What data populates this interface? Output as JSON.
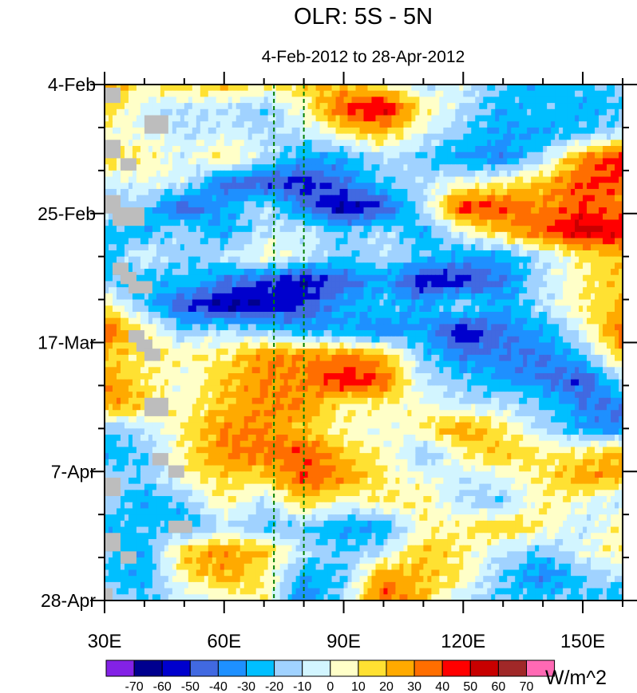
{
  "chart_data": {
    "type": "heatmap",
    "title": "OLR: 5S - 5N",
    "subtitle": "4-Feb-2012 to 28-Apr-2012",
    "xlabel": "",
    "ylabel": "",
    "x_ticks": [
      {
        "lon": 30,
        "label": "30E"
      },
      {
        "lon": 60,
        "label": "60E"
      },
      {
        "lon": 90,
        "label": "90E"
      },
      {
        "lon": 120,
        "label": "120E"
      },
      {
        "lon": 150,
        "label": "150E"
      }
    ],
    "y_ticks": [
      {
        "day": 0,
        "label": "4-Feb"
      },
      {
        "day": 21,
        "label": "25-Feb"
      },
      {
        "day": 42,
        "label": "17-Mar"
      },
      {
        "day": 63,
        "label": "7-Apr"
      },
      {
        "day": 84,
        "label": "28-Apr"
      }
    ],
    "xlim": [
      30,
      160
    ],
    "ylim_days": [
      0,
      84
    ],
    "lon": [
      30,
      40,
      50,
      60,
      70,
      80,
      90,
      100,
      110,
      120,
      130,
      140,
      150,
      160
    ],
    "days": [
      0,
      4,
      8,
      12,
      16,
      20,
      24,
      28,
      32,
      36,
      40,
      44,
      48,
      52,
      56,
      60,
      64,
      68,
      72,
      76,
      80,
      84
    ],
    "values": [
      [
        30,
        10,
        15,
        20,
        10,
        20,
        20,
        10,
        -10,
        -5,
        -20,
        -30,
        -20,
        -20
      ],
      [
        20,
        -5,
        -10,
        -10,
        -20,
        5,
        40,
        55,
        10,
        -10,
        -30,
        -20,
        -30,
        -20
      ],
      [
        0,
        0,
        -10,
        -5,
        -10,
        -10,
        10,
        20,
        -5,
        -20,
        -30,
        -30,
        -20,
        -10
      ],
      [
        20,
        10,
        -5,
        15,
        -10,
        -30,
        -30,
        -10,
        -20,
        -30,
        -40,
        -10,
        30,
        50
      ],
      [
        -10,
        0,
        -5,
        -45,
        -50,
        -55,
        -40,
        -20,
        -10,
        0,
        10,
        20,
        40,
        40
      ],
      [
        -10,
        -20,
        -50,
        -30,
        -10,
        -40,
        -65,
        -50,
        -10,
        45,
        40,
        30,
        40,
        30
      ],
      [
        -20,
        -30,
        -10,
        -30,
        -10,
        -5,
        -20,
        -10,
        -30,
        0,
        20,
        40,
        55,
        50
      ],
      [
        -30,
        0,
        -20,
        -10,
        5,
        -5,
        -20,
        -10,
        -20,
        -30,
        -30,
        -10,
        10,
        20
      ],
      [
        -20,
        -30,
        -20,
        -40,
        -50,
        -60,
        -45,
        -30,
        -60,
        -55,
        -40,
        -10,
        10,
        20
      ],
      [
        10,
        -20,
        -50,
        -65,
        -60,
        -50,
        -30,
        -20,
        -30,
        -10,
        -30,
        -10,
        10,
        20
      ],
      [
        40,
        10,
        -20,
        -10,
        -20,
        -30,
        -30,
        -40,
        -30,
        -60,
        -40,
        -30,
        0,
        40
      ],
      [
        20,
        10,
        10,
        10,
        30,
        30,
        30,
        20,
        -20,
        -40,
        -40,
        -40,
        -20,
        20
      ],
      [
        30,
        10,
        0,
        20,
        30,
        30,
        50,
        40,
        -10,
        -20,
        -30,
        -40,
        -50,
        -10
      ],
      [
        30,
        20,
        5,
        20,
        30,
        30,
        10,
        10,
        0,
        -10,
        -10,
        -20,
        -40,
        -40
      ],
      [
        -20,
        -10,
        10,
        30,
        30,
        20,
        5,
        0,
        10,
        30,
        10,
        -10,
        -30,
        -40
      ],
      [
        -30,
        -20,
        10,
        30,
        35,
        40,
        20,
        10,
        -20,
        10,
        20,
        10,
        10,
        30
      ],
      [
        -10,
        -20,
        5,
        15,
        15,
        40,
        30,
        10,
        0,
        -10,
        0,
        10,
        30,
        20
      ],
      [
        -10,
        -30,
        -20,
        10,
        -10,
        20,
        0,
        10,
        10,
        -10,
        -20,
        10,
        0,
        -10
      ],
      [
        -30,
        -20,
        -30,
        -10,
        -20,
        -20,
        -30,
        -30,
        5,
        10,
        20,
        10,
        -10,
        10
      ],
      [
        -20,
        -30,
        20,
        30,
        20,
        -10,
        -20,
        -10,
        20,
        10,
        -10,
        -20,
        0,
        10
      ],
      [
        -20,
        -30,
        10,
        25,
        10,
        -30,
        -20,
        30,
        20,
        10,
        -20,
        -40,
        -20,
        -10
      ],
      [
        -10,
        -20,
        -10,
        0,
        10,
        -40,
        -10,
        40,
        20,
        -10,
        -20,
        -20,
        -20,
        -30
      ]
    ],
    "missing": [
      [
        30,
        34,
        0.5,
        3
      ],
      [
        40,
        46,
        5,
        8
      ],
      [
        30,
        34,
        9,
        12
      ],
      [
        34,
        38,
        12,
        14
      ],
      [
        30,
        34,
        18,
        21
      ],
      [
        32,
        40,
        20,
        23
      ],
      [
        32,
        36,
        29,
        31
      ],
      [
        34,
        38,
        30.5,
        32.5
      ],
      [
        36,
        42,
        32,
        34
      ],
      [
        36,
        40,
        40,
        42
      ],
      [
        38,
        42,
        41.5,
        43.5
      ],
      [
        40,
        44,
        43,
        45
      ],
      [
        40,
        46,
        51,
        54
      ],
      [
        42,
        46,
        60,
        62
      ],
      [
        46,
        50,
        62,
        64
      ],
      [
        30,
        34,
        64,
        67
      ],
      [
        46,
        52,
        71,
        73
      ],
      [
        30,
        34,
        73,
        76
      ],
      [
        34,
        38,
        76,
        78
      ],
      [
        30,
        32,
        82,
        84
      ]
    ],
    "reference_lines_lon": [
      72.5,
      80
    ],
    "colorbar": {
      "unit_label": "W/m^2",
      "levels": [
        "-70",
        "-60",
        "-50",
        "-40",
        "-30",
        "-20",
        "-10",
        "0",
        "10",
        "20",
        "30",
        "40",
        "50",
        "60",
        "70"
      ],
      "level_values": [
        -70,
        -60,
        -50,
        -40,
        -30,
        -20,
        -10,
        0,
        10,
        20,
        30,
        40,
        50,
        60,
        70
      ],
      "colors": [
        "#8322e6",
        "#00008f",
        "#0000cd",
        "#4169e1",
        "#1e90ff",
        "#00bfff",
        "#a0d2ff",
        "#d2f5ff",
        "#ffffc8",
        "#ffe132",
        "#ffaa00",
        "#ff6e00",
        "#ff0000",
        "#c80000",
        "#a02828",
        "#ff69b4"
      ],
      "placement": "bottom"
    },
    "missing_color": "#bdbdbd",
    "reference_line_color": "#008000"
  }
}
